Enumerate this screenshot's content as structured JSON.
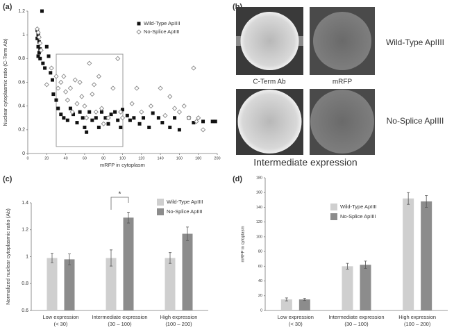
{
  "chart_data": [
    {
      "type": "scatter",
      "panel_label": "(a)",
      "x_label": "mRFP in cytoplasm",
      "y_label": "Nuclear cytoplasmic ratio (C-Term Ab)",
      "xlim": [
        0,
        200
      ],
      "xticks": [
        0,
        20,
        40,
        60,
        80,
        100,
        120,
        140,
        160,
        180,
        200
      ],
      "ylim": [
        0,
        1.2
      ],
      "yticks": [
        0,
        0.2,
        0.4,
        0.6,
        0.8,
        1,
        1.2
      ],
      "series": [
        {
          "name": "Wild-Type ApIIII",
          "color": "#111111",
          "marker": "square",
          "x": [
            10,
            11,
            10,
            12,
            11,
            13,
            12,
            11,
            13,
            15,
            16,
            18,
            20,
            22,
            24,
            26,
            27,
            30,
            32,
            35,
            38,
            42,
            45,
            48,
            52,
            55,
            58,
            60,
            62,
            65,
            68,
            72,
            75,
            78,
            82,
            85,
            88,
            92,
            95,
            98,
            100,
            105,
            108,
            112,
            118,
            122,
            128,
            132,
            138,
            142,
            150,
            155,
            160,
            170,
            175,
            185,
            195,
            198
          ],
          "y": [
            1.04,
            1.0,
            0.97,
            0.94,
            0.9,
            0.88,
            0.85,
            0.82,
            0.8,
            1.2,
            0.76,
            0.72,
            0.9,
            0.82,
            0.68,
            0.62,
            0.5,
            0.45,
            0.38,
            0.33,
            0.3,
            0.28,
            0.38,
            0.33,
            0.26,
            0.35,
            0.3,
            0.22,
            0.18,
            0.35,
            0.28,
            0.3,
            0.22,
            0.35,
            0.3,
            0.25,
            0.33,
            0.35,
            0.28,
            0.22,
            0.37,
            0.32,
            0.28,
            0.3,
            0.25,
            0.3,
            0.22,
            0.34,
            0.3,
            0.26,
            0.22,
            0.3,
            0.2,
            0.3,
            0.26,
            0.27,
            0.27,
            0.27
          ]
        },
        {
          "name": "No-Splice ApIIII",
          "color": "#888888",
          "marker": "diamond",
          "x": [
            10,
            11,
            12,
            13,
            14,
            20,
            25,
            30,
            32,
            35,
            38,
            40,
            42,
            45,
            47,
            50,
            52,
            55,
            57,
            60,
            62,
            65,
            68,
            70,
            72,
            75,
            78,
            80,
            85,
            90,
            95,
            98,
            100,
            110,
            115,
            120,
            130,
            140,
            145,
            150,
            155,
            160,
            165,
            170,
            175,
            178,
            180,
            185
          ],
          "y": [
            1.05,
            1.02,
            0.98,
            0.93,
            0.87,
            0.58,
            0.72,
            0.65,
            0.55,
            0.6,
            0.65,
            0.52,
            0.45,
            0.55,
            0.35,
            0.62,
            0.42,
            0.6,
            0.48,
            0.4,
            0.3,
            0.76,
            0.5,
            0.58,
            0.35,
            0.65,
            0.38,
            0.25,
            0.3,
            0.55,
            0.8,
            0.35,
            0.3,
            0.42,
            0.55,
            0.35,
            0.4,
            0.55,
            0.32,
            0.48,
            0.38,
            0.35,
            0.4,
            0.3,
            0.72,
            0.27,
            0.3,
            0.2
          ]
        }
      ]
    },
    {
      "type": "bar",
      "panel_label": "(c)",
      "y_label": "Normalized nuclear cytoplasmic ratio (Ab)",
      "annotation": "*",
      "categories": [
        [
          "Low expression",
          "(< 30)"
        ],
        [
          "Intermediate expression",
          "(30 – 100)"
        ],
        [
          "High expression",
          "(100 – 200)"
        ]
      ],
      "ylim": [
        0.6,
        1.4
      ],
      "yticks": [
        0.6,
        0.8,
        1,
        1.2,
        1.4
      ],
      "series": [
        {
          "name": "Wild-Type ApIIII",
          "color": "#cfcfcf",
          "values": [
            0.99,
            0.99,
            0.99
          ],
          "errors": [
            0.035,
            0.06,
            0.04
          ]
        },
        {
          "name": "No-Splice ApIIII",
          "color": "#8c8c8c",
          "values": [
            0.98,
            1.29,
            1.17
          ],
          "errors": [
            0.04,
            0.04,
            0.05
          ]
        }
      ]
    },
    {
      "type": "bar",
      "panel_label": "(d)",
      "y_label": "mRFP in cytoplasm",
      "categories": [
        [
          "Low expression",
          "(< 30)"
        ],
        [
          "Intermediate expression",
          "(30 – 100)"
        ],
        [
          "High expression",
          "(100 – 200)"
        ]
      ],
      "ylim": [
        0,
        180
      ],
      "yticks": [
        0,
        20,
        40,
        60,
        80,
        100,
        120,
        140,
        160,
        180
      ],
      "series": [
        {
          "name": "Wild-Type ApIIII",
          "color": "#cfcfcf",
          "values": [
            15,
            60,
            152
          ],
          "errors": [
            2,
            4,
            8
          ]
        },
        {
          "name": "No-Splice ApIIII",
          "color": "#8c8c8c",
          "values": [
            15,
            62,
            148
          ],
          "errors": [
            1.5,
            5,
            8
          ]
        }
      ]
    }
  ],
  "image_panel": {
    "panel_label": "(b)",
    "columns": [
      "C-Term Ab",
      "mRFP"
    ],
    "rows": [
      "Wild-Type ApIIII",
      "No-Splice ApIIII"
    ],
    "caption": "Intermediate expression"
  }
}
